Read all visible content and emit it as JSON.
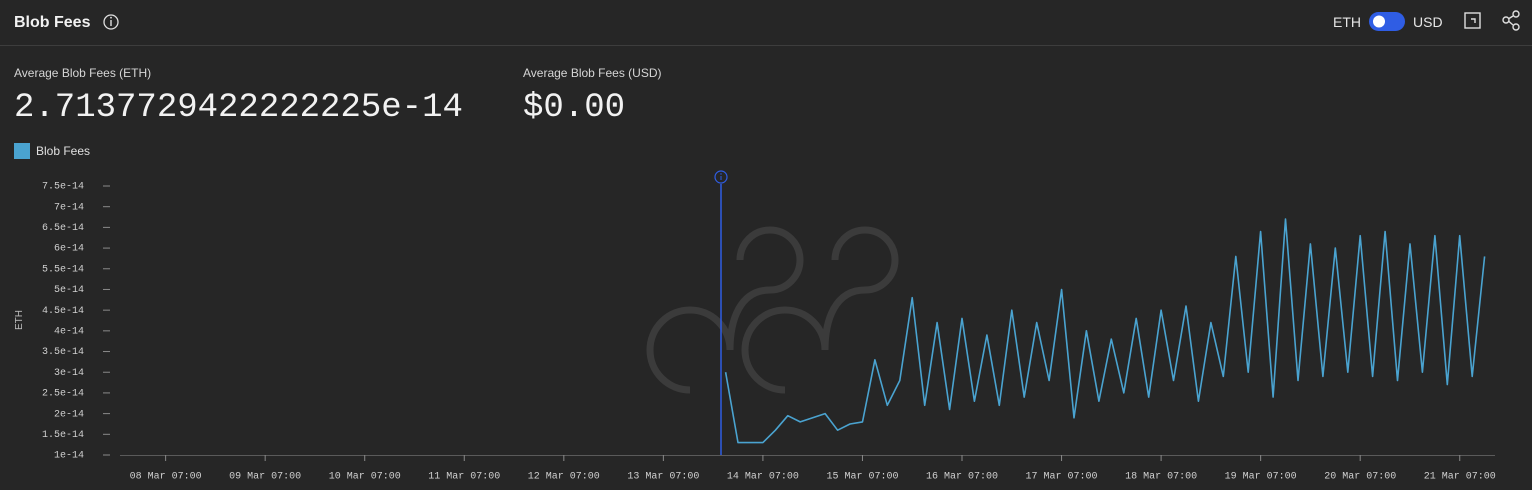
{
  "header": {
    "title": "Blob Fees",
    "toggle": [
      "ETH",
      "USD"
    ]
  },
  "stats": [
    {
      "label": "Average Blob Fees (ETH)",
      "value": "2.7137729422222225e-14"
    },
    {
      "label": "Average Blob Fees (USD)",
      "value": "$0.00"
    }
  ],
  "chart_data": {
    "type": "line",
    "y_label": "ETH",
    "x": [
      "13 Mar 22:00",
      "14 Mar 01:00",
      "14 Mar 04:00",
      "14 Mar 07:00",
      "14 Mar 10:00",
      "14 Mar 13:00",
      "14 Mar 16:00",
      "14 Mar 19:00",
      "14 Mar 22:00",
      "15 Mar 01:00",
      "15 Mar 04:00",
      "15 Mar 07:00",
      "15 Mar 10:00",
      "15 Mar 13:00",
      "15 Mar 16:00",
      "15 Mar 19:00",
      "15 Mar 22:00",
      "16 Mar 01:00",
      "16 Mar 04:00",
      "16 Mar 07:00",
      "16 Mar 10:00",
      "16 Mar 13:00",
      "16 Mar 16:00",
      "16 Mar 19:00",
      "16 Mar 22:00",
      "17 Mar 01:00",
      "17 Mar 04:00",
      "17 Mar 07:00",
      "17 Mar 10:00",
      "17 Mar 13:00",
      "17 Mar 16:00",
      "17 Mar 19:00",
      "17 Mar 22:00",
      "18 Mar 01:00",
      "18 Mar 04:00",
      "18 Mar 07:00",
      "18 Mar 10:00",
      "18 Mar 13:00",
      "18 Mar 16:00",
      "18 Mar 19:00",
      "18 Mar 22:00",
      "19 Mar 01:00",
      "19 Mar 04:00",
      "19 Mar 07:00",
      "19 Mar 10:00",
      "19 Mar 13:00",
      "19 Mar 16:00",
      "19 Mar 19:00",
      "19 Mar 22:00",
      "20 Mar 01:00",
      "20 Mar 04:00",
      "20 Mar 07:00",
      "20 Mar 10:00",
      "20 Mar 13:00",
      "20 Mar 16:00",
      "20 Mar 19:00",
      "20 Mar 22:00",
      "21 Mar 01:00",
      "21 Mar 04:00",
      "21 Mar 07:00",
      "21 Mar 10:00",
      "21 Mar 13:00"
    ],
    "series": [
      {
        "name": "Blob Fees",
        "color": "#4aa3d0",
        "values": [
          3e-14,
          1.3e-14,
          1.3e-14,
          1.3e-14,
          1.6e-14,
          1.95e-14,
          1.8e-14,
          1.9e-14,
          2e-14,
          1.6e-14,
          1.75e-14,
          1.8e-14,
          3.3e-14,
          2.2e-14,
          2.8e-14,
          4.8e-14,
          2.2e-14,
          4.2e-14,
          2.1e-14,
          4.3e-14,
          2.3e-14,
          3.9e-14,
          2.2e-14,
          4.5e-14,
          2.4e-14,
          4.2e-14,
          2.8e-14,
          5e-14,
          1.9e-14,
          4e-14,
          2.3e-14,
          3.8e-14,
          2.5e-14,
          4.3e-14,
          2.4e-14,
          4.5e-14,
          2.8e-14,
          4.6e-14,
          2.3e-14,
          4.2e-14,
          2.9e-14,
          5.8e-14,
          3e-14,
          6.4e-14,
          2.4e-14,
          6.7e-14,
          2.8e-14,
          6.1e-14,
          2.9e-14,
          6e-14,
          3e-14,
          6.3e-14,
          2.9e-14,
          6.4e-14,
          2.8e-14,
          6.1e-14,
          3e-14,
          6.3e-14,
          2.7e-14,
          6.3e-14,
          2.9e-14,
          5.8e-14
        ]
      }
    ],
    "xlim": [
      "07 Mar 20:00",
      "21 Mar 15:30"
    ],
    "xticks": [
      "08 Mar 07:00",
      "09 Mar 07:00",
      "10 Mar 07:00",
      "11 Mar 07:00",
      "12 Mar 07:00",
      "13 Mar 07:00",
      "14 Mar 07:00",
      "15 Mar 07:00",
      "16 Mar 07:00",
      "17 Mar 07:00",
      "18 Mar 07:00",
      "19 Mar 07:00",
      "20 Mar 07:00",
      "21 Mar 07:00"
    ],
    "ylim": [
      1e-14,
      7.5e-14
    ],
    "yticks": [
      1e-14,
      1.5e-14,
      2e-14,
      2.5e-14,
      3e-14,
      3.5e-14,
      4e-14,
      4.5e-14,
      5e-14,
      5.5e-14,
      6e-14,
      6.5e-14,
      7e-14,
      7.5e-14
    ]
  }
}
